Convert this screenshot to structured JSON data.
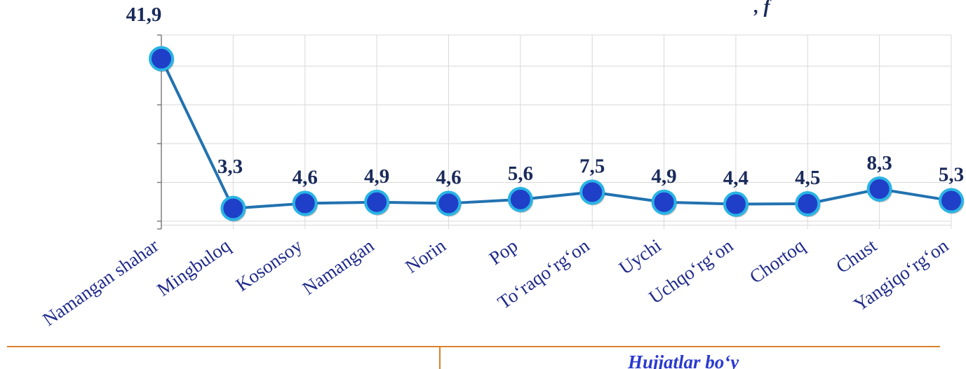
{
  "chart_data": {
    "type": "line",
    "categories": [
      "Namangan shahar",
      "Mingbuloq",
      "Kosonsoy",
      "Namangan",
      "Norin",
      "Pop",
      "To‘raqo‘rg‘on",
      "Uychi",
      "Uchqo‘rg‘on",
      "Chortoq",
      "Chust",
      "Yangiqo‘rg‘on"
    ],
    "values": [
      41.9,
      3.3,
      4.6,
      4.9,
      4.6,
      5.6,
      7.5,
      4.9,
      4.4,
      4.5,
      8.3,
      5.3
    ],
    "value_labels": [
      "41,9",
      "3,3",
      "4,6",
      "4,9",
      "4,6",
      "5,6",
      "7,5",
      "4,9",
      "4,4",
      "4,5",
      "8,3",
      "5,3"
    ],
    "ylim": [
      -2,
      48
    ],
    "grid": true,
    "colors": {
      "line": "#2272b0",
      "marker_fill": "#1f3fc8",
      "marker_ring": "#2ab4e4",
      "label": "#1a2a5a",
      "tick": "#1f2a8a",
      "grid": "#d9d9d9"
    }
  },
  "fragments": {
    "top_right": ", f",
    "bottom": "Hujjatlar bo‘y"
  },
  "colors": {
    "divider": "#d9822b"
  }
}
